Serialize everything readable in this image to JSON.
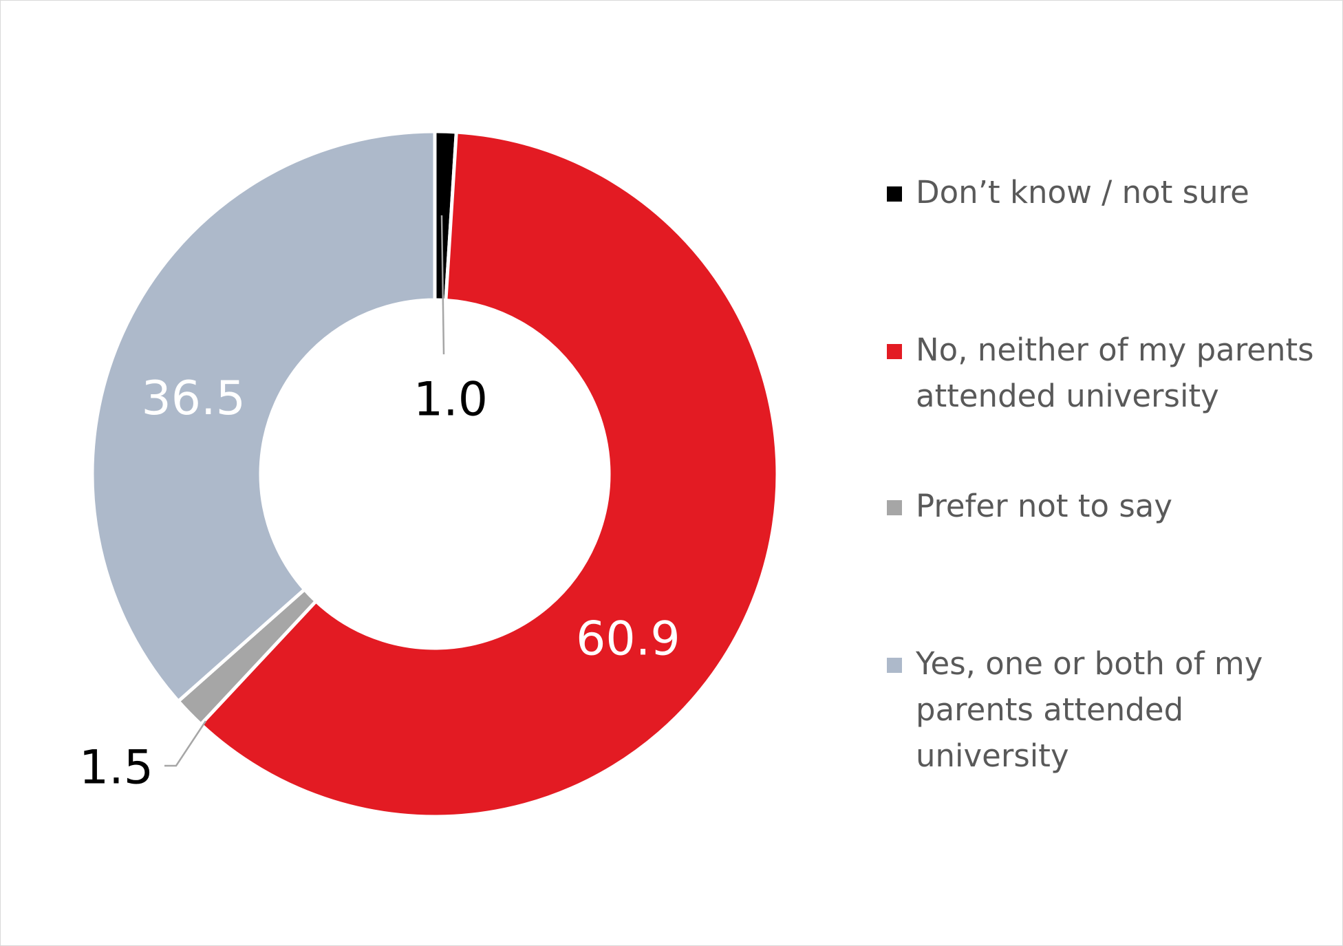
{
  "chart_data": {
    "type": "pie",
    "variant": "donut",
    "title": "",
    "legend_position": "right",
    "label_unit": "%",
    "slices": [
      {
        "label": "Don’t know / not sure",
        "value": 1.0,
        "display": "1.0",
        "color": "#000000",
        "label_color": "#000000"
      },
      {
        "label": "No, neither of my parents attended university",
        "value": 60.9,
        "display": "60.9",
        "color": "#e31b23",
        "label_color": "#ffffff"
      },
      {
        "label": "Prefer not to say",
        "value": 1.5,
        "display": "1.5",
        "color": "#a6a6a6",
        "label_color": "#000000"
      },
      {
        "label": "Yes, one or both of my parents attended university",
        "value": 36.5,
        "display": "36.5",
        "color": "#adb9ca",
        "label_color": "#ffffff"
      }
    ],
    "legend_lines": [
      "Don’t know / not sure",
      "No, neither of my parents\nattended university",
      "Prefer not to say",
      "Yes, one or both of my\nparents attended\nuniversity"
    ],
    "leader_line_color": "#a6a6a6"
  }
}
